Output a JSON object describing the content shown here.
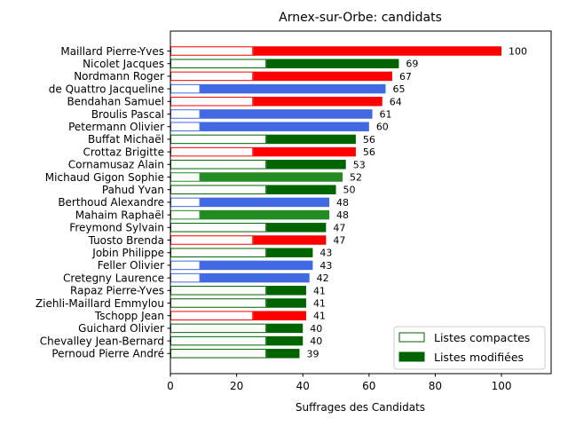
{
  "chart_data": {
    "type": "bar",
    "orientation": "horizontal",
    "title": "Arnex-sur-Orbe: candidats",
    "xlabel": "Suffrages des Candidats",
    "ylabel": "",
    "xlim": [
      0,
      115
    ],
    "x_ticks": [
      "0",
      "20",
      "40",
      "60",
      "80",
      "100"
    ],
    "legend": {
      "placement": "lower-right",
      "entries": [
        {
          "label": "Listes compactes",
          "style": "outline"
        },
        {
          "label": "Listes modifiées",
          "style": "filled"
        }
      ]
    },
    "categories": [
      "Maillard Pierre-Yves",
      "Nicolet Jacques",
      "Nordmann Roger",
      "de Quattro Jacqueline",
      "Bendahan Samuel",
      "Broulis Pascal",
      "Petermann Olivier",
      "Buffat Michaël",
      "Crottaz Brigitte",
      "Cornamusaz Alain",
      "Michaud Gigon Sophie",
      "Pahud Yvan",
      "Berthoud Alexandre",
      "Mahaim Raphaël",
      "Freymond Sylvain",
      "Tuosto Brenda",
      "Jobin Philippe",
      "Feller Olivier",
      "Cretegny Laurence",
      "Rapaz Pierre-Yves",
      "Ziehli-Maillard Emmylou",
      "Tschopp Jean",
      "Guichard Olivier",
      "Chevalley Jean-Bernard",
      "Pernoud Pierre André"
    ],
    "series": [
      {
        "name": "Listes compactes",
        "values": [
          25,
          29,
          25,
          9,
          25,
          9,
          9,
          29,
          25,
          29,
          9,
          29,
          9,
          9,
          29,
          25,
          29,
          9,
          9,
          29,
          29,
          25,
          29,
          29,
          29
        ]
      },
      {
        "name": "Listes modifiées",
        "values": [
          75,
          40,
          42,
          56,
          39,
          52,
          51,
          27,
          31,
          24,
          43,
          21,
          39,
          39,
          18,
          22,
          14,
          34,
          33,
          12,
          12,
          16,
          11,
          11,
          10
        ]
      }
    ],
    "totals": [
      100,
      69,
      67,
      65,
      64,
      61,
      60,
      56,
      56,
      53,
      52,
      50,
      48,
      48,
      47,
      47,
      43,
      43,
      42,
      41,
      41,
      41,
      40,
      40,
      39
    ],
    "colors": [
      "#ff0000",
      "#006400",
      "#ff0000",
      "#4169e1",
      "#ff0000",
      "#4169e1",
      "#4169e1",
      "#006400",
      "#ff0000",
      "#006400",
      "#228b22",
      "#006400",
      "#4169e1",
      "#228b22",
      "#006400",
      "#ff0000",
      "#006400",
      "#4169e1",
      "#4169e1",
      "#006400",
      "#006400",
      "#ff0000",
      "#006400",
      "#006400",
      "#006400"
    ],
    "legend_color": "#006400",
    "grid": false
  }
}
